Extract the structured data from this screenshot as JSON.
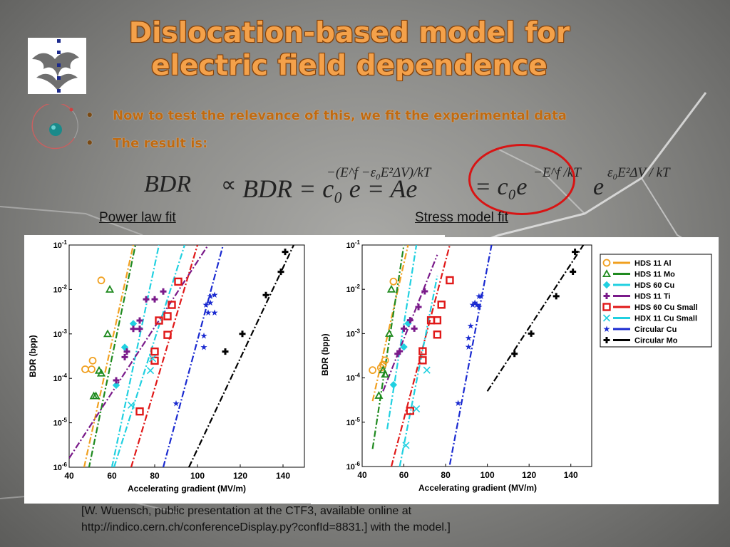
{
  "slide": {
    "title_line1": "Dislocation-based model for",
    "title_line2": "electric field dependence",
    "bullets": [
      "Now to test the relevance of this, we fit the experimental data",
      "The result is:"
    ],
    "formula": {
      "left": "BDR",
      "proportional": "∝",
      "mid": "BDR = c₀ e = Ae",
      "exp_left": "−(E^f −ε₀E²ΔV)/kT",
      "right": "= c₀e",
      "exp_right1": "−E^f /kT",
      "e2": "e",
      "exp_right2": "ε₀E²ΔV / kT"
    },
    "caption_left": "Power law fit ",
    "caption_right": "Stress model fit",
    "reference_line1": "[W. Wuensch, public presentation at the CTF3, available online at",
    "reference_line2": "http://indico.cern.ch/conferenceDisplay.py?confId=8831.] with the model.]"
  },
  "colors": {
    "title": "#f4a14a",
    "bullet_text": "#c06a10",
    "ellipse": "#d81414"
  },
  "chart_data": [
    {
      "type": "scatter",
      "title": "",
      "xlabel": "Accelerating gradient (MV/m)",
      "ylabel": "BDR (bpp)",
      "x_ticks": [
        "40",
        "60",
        "80",
        "100",
        "120",
        "140"
      ],
      "y_ticks": [
        "10^-1",
        "10^-2",
        "10^-3",
        "10^-4",
        "10^-5",
        "10^-6"
      ],
      "xlim": [
        40,
        150
      ],
      "ylim_log10": [
        -6,
        -1
      ],
      "series": [
        {
          "name": "HDS 11 Al",
          "color": "#f0a020",
          "marker": "circle",
          "points": [
            [
              47.5,
              0.00016
            ],
            [
              50.5,
              0.00016
            ],
            [
              51,
              0.00025
            ],
            [
              55,
              0.016
            ]
          ],
          "fit": [
            [
              47,
              1e-06
            ],
            [
              70,
              0.1
            ]
          ]
        },
        {
          "name": "HDS 11 Mo",
          "color": "#1f8a1f",
          "marker": "triangle",
          "points": [
            [
              51.5,
              4e-05
            ],
            [
              52.5,
              4e-05
            ],
            [
              54,
              0.00015
            ],
            [
              55,
              0.00013
            ],
            [
              58,
              0.001
            ],
            [
              59,
              0.01
            ]
          ],
          "fit": [
            [
              48,
              5e-07
            ],
            [
              71,
              0.1
            ]
          ]
        },
        {
          "name": "HDS 60 Cu",
          "color": "#20d0e0",
          "marker": "diamond",
          "points": [
            [
              62,
              7e-05
            ],
            [
              66,
              0.0005
            ],
            [
              70,
              0.0017
            ]
          ],
          "fit": [
            [
              60,
              1e-06
            ],
            [
              82,
              0.1
            ]
          ]
        },
        {
          "name": "HDS 11 Ti",
          "color": "#7a1a8a",
          "marker": "plus",
          "points": [
            [
              62,
              9e-05
            ],
            [
              66,
              0.0003
            ],
            [
              67,
              0.0004
            ],
            [
              70,
              0.0013
            ],
            [
              73,
              0.0013
            ],
            [
              73,
              0.002
            ],
            [
              76,
              0.006
            ],
            [
              80,
              0.006
            ],
            [
              84,
              0.009
            ]
          ],
          "fit": [
            [
              40,
              1.6e-06
            ],
            [
              105,
              0.1
            ]
          ]
        },
        {
          "name": "HDS 60 Cu Small",
          "color": "#e01818",
          "marker": "square",
          "points": [
            [
              73,
              1.8e-05
            ],
            [
              80,
              0.00025
            ],
            [
              80,
              0.0004
            ],
            [
              82,
              0.002
            ],
            [
              86,
              0.00095
            ],
            [
              86,
              0.0025
            ],
            [
              88,
              0.0045
            ],
            [
              91,
              0.015
            ]
          ],
          "fit": [
            [
              69,
              1e-06
            ],
            [
              100,
              0.1
            ]
          ]
        },
        {
          "name": "HDX 11 Cu Small",
          "color": "#20d0e0",
          "marker": "x",
          "points": [
            [
              69,
              2.5e-05
            ],
            [
              78,
              0.00015
            ],
            [
              79,
              0.00028
            ]
          ],
          "fit": [
            [
              61,
              1e-06
            ],
            [
              94,
              0.1
            ]
          ]
        },
        {
          "name": "Circular Cu",
          "color": "#1a2ad0",
          "marker": "star",
          "points": [
            [
              90,
              2.7e-05
            ],
            [
              103,
              0.0005
            ],
            [
              103,
              0.0009
            ],
            [
              104,
              0.0045
            ],
            [
              105,
              0.003
            ],
            [
              106,
              0.005
            ],
            [
              106,
              0.007
            ],
            [
              108,
              0.003
            ],
            [
              108,
              0.0075
            ]
          ],
          "fit": [
            [
              84,
              1e-06
            ],
            [
              112,
              0.1
            ]
          ]
        },
        {
          "name": "Circular Mo",
          "color": "#000000",
          "marker": "plus",
          "points": [
            [
              113,
              0.0004
            ],
            [
              121,
              0.001
            ],
            [
              132,
              0.0075
            ],
            [
              139,
              0.025
            ],
            [
              141,
              0.07
            ]
          ],
          "fit": [
            [
              96,
              1e-06
            ],
            [
              145,
              0.1
            ]
          ]
        }
      ]
    },
    {
      "type": "scatter",
      "title": "",
      "xlabel": "Accelerating gradient (MV/m)",
      "ylabel": "BDR (bpp)",
      "x_ticks": [
        "40",
        "60",
        "80",
        "100",
        "120",
        "140"
      ],
      "y_ticks": [
        "10^-1",
        "10^-2",
        "10^-3",
        "10^-4",
        "10^-5",
        "10^-6"
      ],
      "xlim": [
        40,
        150
      ],
      "ylim_log10": [
        -6,
        -1
      ],
      "legend": "top-right",
      "series": [
        {
          "name": "HDS 11 Al",
          "color": "#f0a020",
          "marker": "circle",
          "points": [
            [
              45,
              0.00015
            ],
            [
              49,
              0.00017
            ],
            [
              50,
              0.0002
            ],
            [
              51,
              0.00025
            ],
            [
              55,
              0.015
            ]
          ],
          "fit": [
            [
              45,
              3e-05
            ],
            [
              62,
              0.1
            ]
          ]
        },
        {
          "name": "HDS 11 Mo",
          "color": "#1f8a1f",
          "marker": "triangle",
          "points": [
            [
              48,
              4e-05
            ],
            [
              50,
              0.00015
            ],
            [
              51,
              0.00012
            ],
            [
              53,
              0.001
            ],
            [
              54,
              0.01
            ]
          ],
          "fit": [
            [
              45,
              2.5e-06
            ],
            [
              60,
              0.1
            ]
          ]
        },
        {
          "name": "HDS 60 Cu",
          "color": "#20d0e0",
          "marker": "diamond",
          "points": [
            [
              55,
              7e-05
            ],
            [
              60,
              0.0005
            ],
            [
              62,
              0.0017
            ]
          ],
          "fit": [
            [
              52,
              7e-06
            ],
            [
              66,
              0.1
            ]
          ]
        },
        {
          "name": "HDS 11 Ti",
          "color": "#7a1a8a",
          "marker": "plus",
          "points": [
            [
              57,
              0.00035
            ],
            [
              58,
              0.0004
            ],
            [
              60,
              0.0013
            ],
            [
              63,
              0.002
            ],
            [
              65,
              0.0013
            ],
            [
              67,
              0.004
            ],
            [
              70,
              0.009
            ]
          ],
          "fit": [
            [
              50,
              5e-05
            ],
            [
              76,
              0.06
            ]
          ]
        },
        {
          "name": "HDS 60 Cu Small",
          "color": "#e01818",
          "marker": "square",
          "points": [
            [
              63,
              1.8e-05
            ],
            [
              69,
              0.00025
            ],
            [
              69,
              0.0004
            ],
            [
              73,
              0.002
            ],
            [
              76,
              0.002
            ],
            [
              76,
              0.00095
            ],
            [
              78,
              0.0045
            ],
            [
              82,
              0.016
            ]
          ],
          "fit": [
            [
              54,
              1e-06
            ],
            [
              82,
              0.1
            ]
          ]
        },
        {
          "name": "HDX 11 Cu Small",
          "color": "#20d0e0",
          "marker": "x",
          "points": [
            [
              61,
              3e-06
            ],
            [
              66,
              2e-05
            ],
            [
              71,
              0.00015
            ]
          ],
          "fit": [
            [
              58,
              1e-06
            ],
            [
              76,
              0.02
            ]
          ]
        },
        {
          "name": "Circular Cu",
          "color": "#1a2ad0",
          "marker": "star",
          "points": [
            [
              86,
              2.7e-05
            ],
            [
              91,
              0.0005
            ],
            [
              91,
              0.0008
            ],
            [
              92,
              0.0015
            ],
            [
              93,
              0.0045
            ],
            [
              94,
              0.005
            ],
            [
              95,
              0.0045
            ],
            [
              96,
              0.004
            ],
            [
              96,
              0.007
            ],
            [
              97,
              0.007
            ]
          ],
          "fit": [
            [
              82,
              1.1e-06
            ],
            [
              102,
              0.1
            ]
          ]
        },
        {
          "name": "Circular Mo",
          "color": "#000000",
          "marker": "plus",
          "points": [
            [
              113,
              0.00035
            ],
            [
              121,
              0.001
            ],
            [
              133,
              0.007
            ],
            [
              141,
              0.025
            ],
            [
              142,
              0.07
            ]
          ],
          "fit": [
            [
              100,
              5e-05
            ],
            [
              146,
              0.1
            ]
          ]
        }
      ]
    }
  ]
}
